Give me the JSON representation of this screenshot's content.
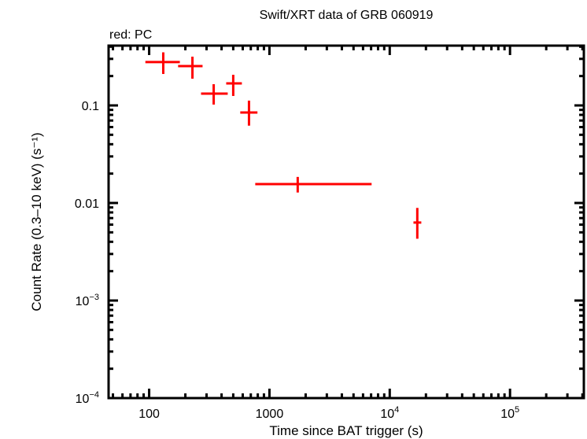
{
  "chart_data": {
    "type": "scatter",
    "title": "Swift/XRT data of GRB 060919",
    "subtitle": "red: PC",
    "xlabel": "Time since BAT trigger (s)",
    "ylabel": "Count Rate (0.3–10 keV) (s⁻¹)",
    "xscale": "log",
    "yscale": "log",
    "xlim": [
      46,
      411000
    ],
    "ylim": [
      0.0001,
      0.41
    ],
    "x_ticks": [
      {
        "value": 100,
        "label": "100"
      },
      {
        "value": 1000,
        "label": "1000"
      },
      {
        "value": 10000,
        "label": "10",
        "sup": "4"
      },
      {
        "value": 100000,
        "label": "10",
        "sup": "5"
      }
    ],
    "y_ticks": [
      {
        "value": 0.1,
        "label": "0.1"
      },
      {
        "value": 0.01,
        "label": "0.01"
      },
      {
        "value": 0.001,
        "label": "10",
        "sup": "−3"
      },
      {
        "value": 0.0001,
        "label": "10",
        "sup": "−4"
      }
    ],
    "grid": false,
    "legend": "none",
    "series": [
      {
        "name": "PC",
        "color": "#ff0000",
        "points": [
          {
            "x": 131,
            "xlo": 93,
            "xhi": 180,
            "y": 0.278,
            "ylo": 0.21,
            "yhi": 0.35
          },
          {
            "x": 229,
            "xlo": 174,
            "xhi": 278,
            "y": 0.253,
            "ylo": 0.188,
            "yhi": 0.316
          },
          {
            "x": 344,
            "xlo": 270,
            "xhi": 450,
            "y": 0.132,
            "ylo": 0.102,
            "yhi": 0.165
          },
          {
            "x": 500,
            "xlo": 437,
            "xhi": 590,
            "y": 0.168,
            "ylo": 0.125,
            "yhi": 0.206
          },
          {
            "x": 676,
            "xlo": 572,
            "xhi": 795,
            "y": 0.0846,
            "ylo": 0.062,
            "yhi": 0.112
          },
          {
            "x": 1718,
            "xlo": 762,
            "xhi": 7070,
            "y": 0.0156,
            "ylo": 0.0128,
            "yhi": 0.0185
          },
          {
            "x": 16950,
            "xlo": 15750,
            "xhi": 18300,
            "y": 0.0063,
            "ylo": 0.0043,
            "yhi": 0.0089
          }
        ]
      }
    ]
  }
}
